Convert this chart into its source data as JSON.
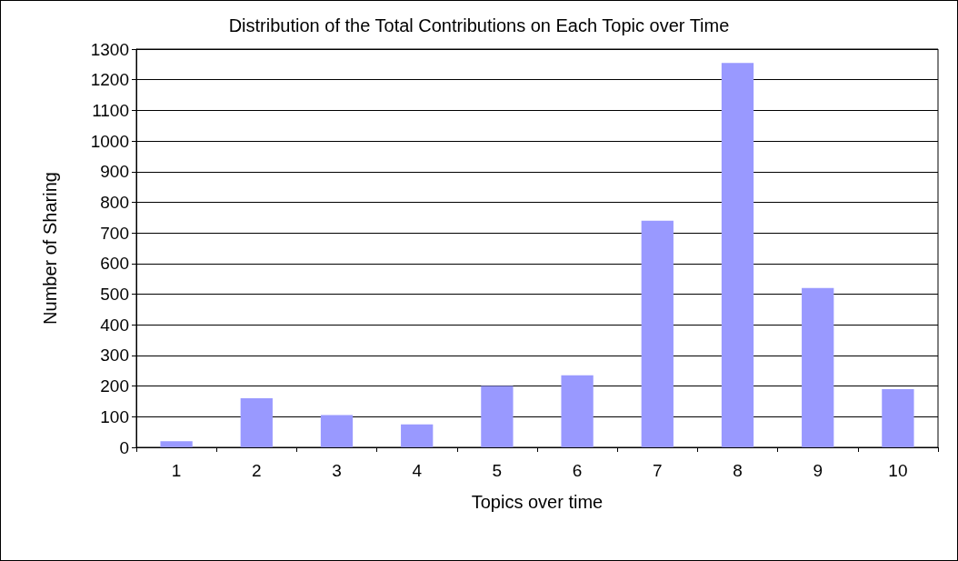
{
  "chart_data": {
    "type": "bar",
    "title": "Distribution of the Total Contributions on Each Topic over Time",
    "xlabel": "Topics over time",
    "ylabel": "Number of Sharing",
    "categories": [
      "1",
      "2",
      "3",
      "4",
      "5",
      "6",
      "7",
      "8",
      "9",
      "10"
    ],
    "values": [
      20,
      160,
      105,
      75,
      200,
      235,
      740,
      1255,
      520,
      190
    ],
    "color": "#9999ff",
    "ylim": [
      0,
      1300
    ],
    "yticks": [
      0,
      100,
      200,
      300,
      400,
      500,
      600,
      700,
      800,
      900,
      1000,
      1100,
      1200,
      1300
    ],
    "grid": "y"
  }
}
